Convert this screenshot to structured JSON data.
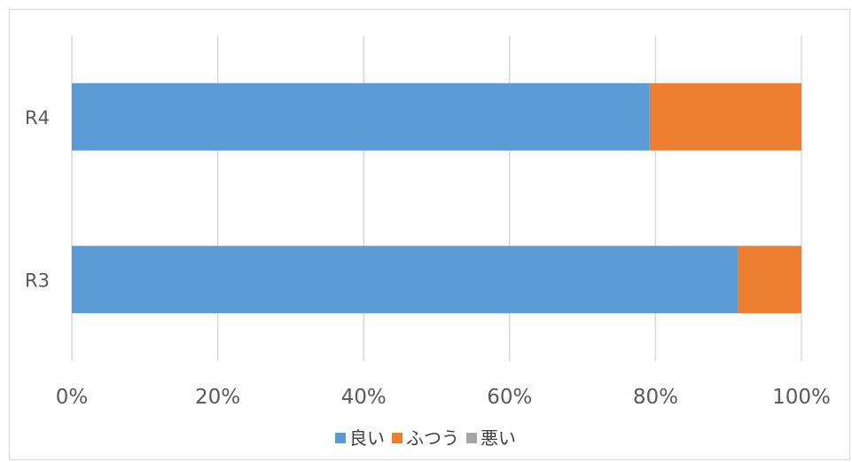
{
  "chart_data": {
    "type": "bar",
    "orientation": "horizontal",
    "stacked": "percent",
    "categories": [
      "R4",
      "R3"
    ],
    "series": [
      {
        "name": "良い",
        "color": "#5b9bd5",
        "values": [
          79.2,
          91.3
        ]
      },
      {
        "name": "ふつう",
        "color": "#ed7d31",
        "values": [
          20.8,
          8.7
        ]
      },
      {
        "name": "悪い",
        "color": "#a5a5a5",
        "values": [
          0,
          0
        ]
      }
    ],
    "xlim": [
      0,
      100
    ],
    "xticks": [
      "0%",
      "20%",
      "40%",
      "60%",
      "80%",
      "100%"
    ],
    "grid": true,
    "legend": "bottom",
    "title": "",
    "xlabel": "",
    "ylabel": ""
  }
}
